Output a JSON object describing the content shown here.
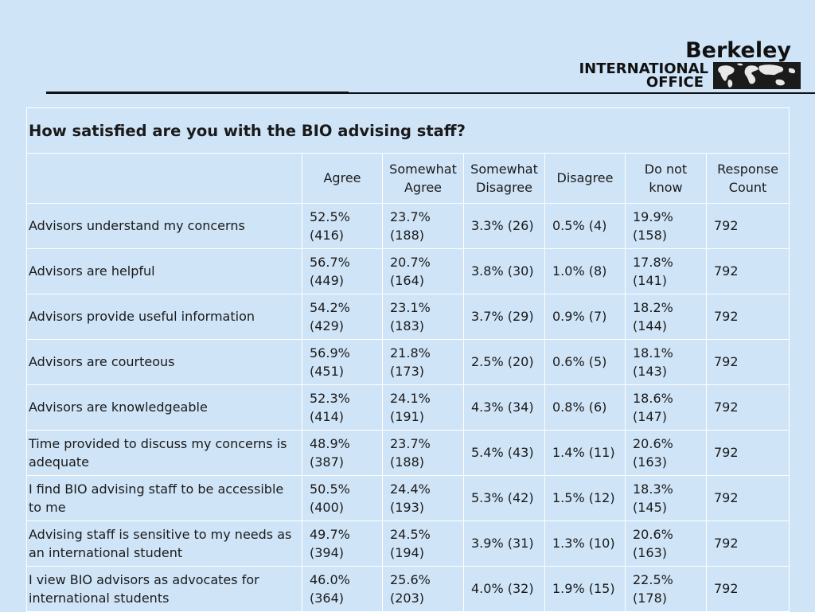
{
  "logo": {
    "name": "Berkeley",
    "line1": "INTERNATIONAL",
    "line2": "OFFICE",
    "map_icon": "world-map-icon"
  },
  "table": {
    "title": "How satisfied are you with the BIO advising staff?",
    "headers": [
      "",
      "Agree",
      "Somewhat Agree",
      "Somewhat Disagree",
      "Disagree",
      "Do not know",
      "Response Count"
    ],
    "rows": [
      {
        "label": "Advisors understand my concerns",
        "agree": "52.5% (416)",
        "somewhat_agree": "23.7% (188)",
        "somewhat_disagree": "3.3% (26)",
        "disagree": "0.5% (4)",
        "do_not_know": "19.9% (158)",
        "count": "792"
      },
      {
        "label": "Advisors are helpful",
        "agree": "56.7% (449)",
        "somewhat_agree": "20.7% (164)",
        "somewhat_disagree": "3.8% (30)",
        "disagree": "1.0% (8)",
        "do_not_know": "17.8% (141)",
        "count": "792"
      },
      {
        "label": "Advisors provide useful information",
        "agree": "54.2% (429)",
        "somewhat_agree": "23.1% (183)",
        "somewhat_disagree": "3.7% (29)",
        "disagree": "0.9% (7)",
        "do_not_know": "18.2% (144)",
        "count": "792"
      },
      {
        "label": "Advisors are courteous",
        "agree": "56.9% (451)",
        "somewhat_agree": "21.8% (173)",
        "somewhat_disagree": "2.5% (20)",
        "disagree": "0.6% (5)",
        "do_not_know": "18.1% (143)",
        "count": "792"
      },
      {
        "label": "Advisors are knowledgeable",
        "agree": "52.3% (414)",
        "somewhat_agree": "24.1% (191)",
        "somewhat_disagree": "4.3% (34)",
        "disagree": "0.8% (6)",
        "do_not_know": "18.6% (147)",
        "count": "792"
      },
      {
        "label": "Time provided to discuss my concerns is adequate",
        "agree": "48.9% (387)",
        "somewhat_agree": "23.7% (188)",
        "somewhat_disagree": "5.4% (43)",
        "disagree": "1.4% (11)",
        "do_not_know": "20.6% (163)",
        "count": "792"
      },
      {
        "label": "I find BIO advising staff to be accessible to me",
        "agree": "50.5% (400)",
        "somewhat_agree": "24.4% (193)",
        "somewhat_disagree": "5.3% (42)",
        "disagree": "1.5% (12)",
        "do_not_know": "18.3% (145)",
        "count": "792"
      },
      {
        "label": "Advising staff is sensitive to my needs as an international student",
        "agree": "49.7% (394)",
        "somewhat_agree": "24.5% (194)",
        "somewhat_disagree": "3.9% (31)",
        "disagree": "1.3% (10)",
        "do_not_know": "20.6% (163)",
        "count": "792"
      },
      {
        "label": "I view BIO advisors as advocates for international students",
        "agree": "46.0% (364)",
        "somewhat_agree": "25.6% (203)",
        "somewhat_disagree": "4.0% (32)",
        "disagree": "1.9% (15)",
        "do_not_know": "22.5% (178)",
        "count": "792"
      }
    ]
  }
}
